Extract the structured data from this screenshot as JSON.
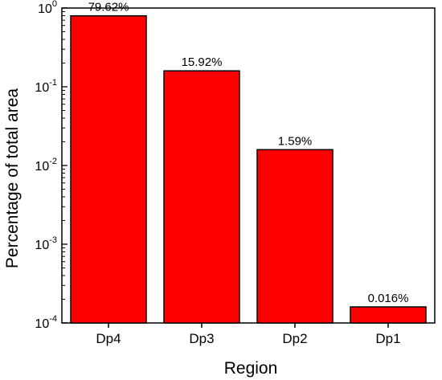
{
  "chart_data": {
    "type": "bar",
    "categories": [
      "Dp4",
      "Dp3",
      "Dp2",
      "Dp1"
    ],
    "values": [
      0.7962,
      0.1592,
      0.0159,
      0.00016
    ],
    "data_labels": [
      "79.62%",
      "15.92%",
      "1.59%",
      "0.016%"
    ],
    "xlabel": "Region",
    "ylabel": "Percentage of total area",
    "yscale": "log",
    "ylim": [
      0.0001,
      1
    ],
    "yticks": [
      {
        "value": 1,
        "base": "10",
        "exp": "0"
      },
      {
        "value": 0.1,
        "base": "10",
        "exp": "-1"
      },
      {
        "value": 0.01,
        "base": "10",
        "exp": "-2"
      },
      {
        "value": 0.001,
        "base": "10",
        "exp": "-3"
      },
      {
        "value": 0.0001,
        "base": "10",
        "exp": "-4"
      }
    ],
    "grid": false,
    "legend": "none",
    "colors": {
      "bar": "#ff0000",
      "edge": "#000000"
    }
  }
}
